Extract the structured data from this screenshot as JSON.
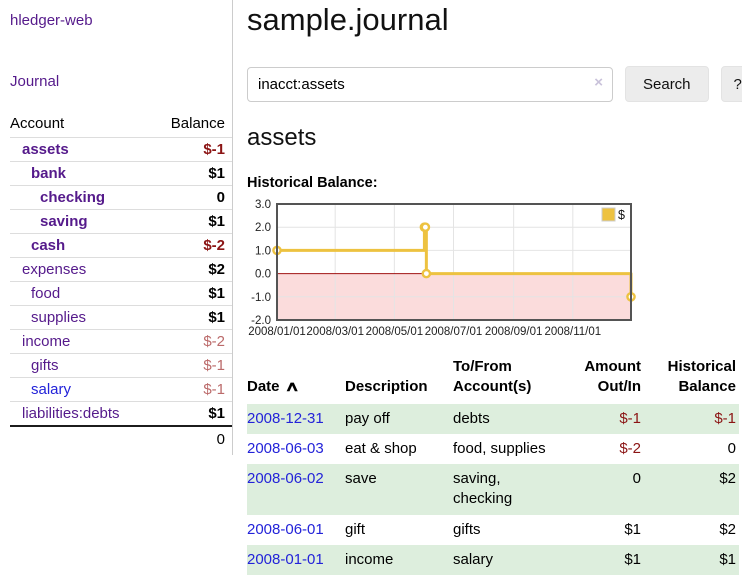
{
  "app": {
    "title": "hledger-web"
  },
  "colors": {
    "purple": "#551a8b",
    "blue": "#2323d9",
    "dark_red": "#8b1414",
    "soft_red": "#bb6a6a",
    "row_green": "#ddeedd",
    "button_bg": "#ececec"
  },
  "sidebar": {
    "journal_label": "Journal",
    "accounts": {
      "header_account": "Account",
      "header_balance": "Balance",
      "rows": [
        {
          "name": "assets",
          "indent": 1,
          "bold": true,
          "link_color": "purple",
          "balance": "$-1",
          "balance_style": "neg-strong"
        },
        {
          "name": "bank",
          "indent": 2,
          "bold": true,
          "link_color": "purple",
          "balance": "$1",
          "balance_style": "pos"
        },
        {
          "name": "checking",
          "indent": 3,
          "bold": true,
          "link_color": "purple",
          "balance": "0",
          "balance_style": "pos"
        },
        {
          "name": "saving",
          "indent": 3,
          "bold": true,
          "link_color": "purple",
          "balance": "$1",
          "balance_style": "pos"
        },
        {
          "name": "cash",
          "indent": 2,
          "bold": true,
          "link_color": "purple",
          "balance": "$-2",
          "balance_style": "neg-strong"
        },
        {
          "name": "expenses",
          "indent": 1,
          "bold": false,
          "link_color": "purple",
          "balance": "$2",
          "balance_style": "pos"
        },
        {
          "name": "food",
          "indent": 2,
          "bold": false,
          "link_color": "purple",
          "balance": "$1",
          "balance_style": "pos"
        },
        {
          "name": "supplies",
          "indent": 2,
          "bold": false,
          "link_color": "purple",
          "balance": "$1",
          "balance_style": "pos"
        },
        {
          "name": "income",
          "indent": 1,
          "bold": false,
          "link_color": "purple",
          "balance": "$-2",
          "balance_style": "neg-soft"
        },
        {
          "name": "gifts",
          "indent": 2,
          "bold": false,
          "link_color": "purple",
          "balance": "$-1",
          "balance_style": "neg-soft"
        },
        {
          "name": "salary",
          "indent": 2,
          "bold": false,
          "link_color": "blue",
          "balance": "$-1",
          "balance_style": "neg-soft"
        },
        {
          "name": "liabilities:debts",
          "indent": 1,
          "bold": false,
          "link_color": "purple",
          "balance": "$1",
          "balance_style": "pos"
        }
      ],
      "total": "0"
    }
  },
  "main": {
    "title": "sample.journal",
    "search": {
      "value": "inacct:assets",
      "clear_icon": "×",
      "button_label": "Search",
      "help_label": "?"
    },
    "account_heading": "assets",
    "register": {
      "sort_icon": "∧",
      "columns": [
        {
          "lines": [
            "Date"
          ],
          "sorted": true,
          "align": "left"
        },
        {
          "lines": [
            "Description"
          ],
          "align": "left"
        },
        {
          "lines": [
            "To/From",
            "Account(s)"
          ],
          "align": "left"
        },
        {
          "lines": [
            "Amount",
            "Out/In"
          ],
          "align": "right"
        },
        {
          "lines": [
            "Historical",
            "Balance"
          ],
          "align": "right"
        }
      ],
      "rows": [
        {
          "date": "2008-12-31",
          "description": "pay off",
          "accounts": "debts",
          "amount": "$-1",
          "amount_negative": true,
          "balance": "$-1",
          "balance_negative": true
        },
        {
          "date": "2008-06-03",
          "description": "eat & shop",
          "accounts": "food, supplies",
          "amount": "$-2",
          "amount_negative": true,
          "balance": "0",
          "balance_negative": false
        },
        {
          "date": "2008-06-02",
          "description": "save",
          "accounts": "saving, checking",
          "amount": "0",
          "amount_negative": false,
          "balance": "$2",
          "balance_negative": false
        },
        {
          "date": "2008-06-01",
          "description": "gift",
          "accounts": "gifts",
          "amount": "$1",
          "amount_negative": false,
          "balance": "$2",
          "balance_negative": false
        },
        {
          "date": "2008-01-01",
          "description": "income",
          "accounts": "salary",
          "amount": "$1",
          "amount_negative": false,
          "balance": "$1",
          "balance_negative": false
        }
      ]
    }
  },
  "chart_data": {
    "type": "line",
    "title": "Historical Balance:",
    "style": "step",
    "xrange": [
      "2008-01-01",
      "2008-12-31"
    ],
    "ylim": [
      -2,
      3
    ],
    "yticks": [
      {
        "v": 3,
        "label": "3.0"
      },
      {
        "v": 2,
        "label": "2.0"
      },
      {
        "v": 1,
        "label": "1.0"
      },
      {
        "v": 0,
        "label": "0.0"
      },
      {
        "v": -1,
        "label": "-1.0"
      },
      {
        "v": -2,
        "label": "-2.0"
      }
    ],
    "xticks": [
      {
        "date": "2008-01-01",
        "label": "2008/01/01"
      },
      {
        "date": "2008-03-01",
        "label": "2008/03/01"
      },
      {
        "date": "2008-05-01",
        "label": "2008/05/01"
      },
      {
        "date": "2008-07-01",
        "label": "2008/07/01"
      },
      {
        "date": "2008-09-01",
        "label": "2008/09/01"
      },
      {
        "date": "2008-11-01",
        "label": "2008/11/01"
      }
    ],
    "series": [
      {
        "name": "$",
        "points": [
          [
            "2008-01-01",
            1
          ],
          [
            "2008-06-01",
            2
          ],
          [
            "2008-06-02",
            2
          ],
          [
            "2008-06-03",
            0
          ],
          [
            "2008-12-31",
            -1
          ]
        ]
      }
    ],
    "legend": {
      "position": "top-right",
      "entries": [
        "$"
      ]
    },
    "grid": true,
    "colors": {
      "line": "#edc240",
      "marker_fill": "#ffffff",
      "negative_fill": "#fbdcdc",
      "zero_line": "#a11212",
      "grid": "#e4e4e4",
      "border": "#545454",
      "legend_border": "#cccccc",
      "label": "#222222"
    }
  }
}
